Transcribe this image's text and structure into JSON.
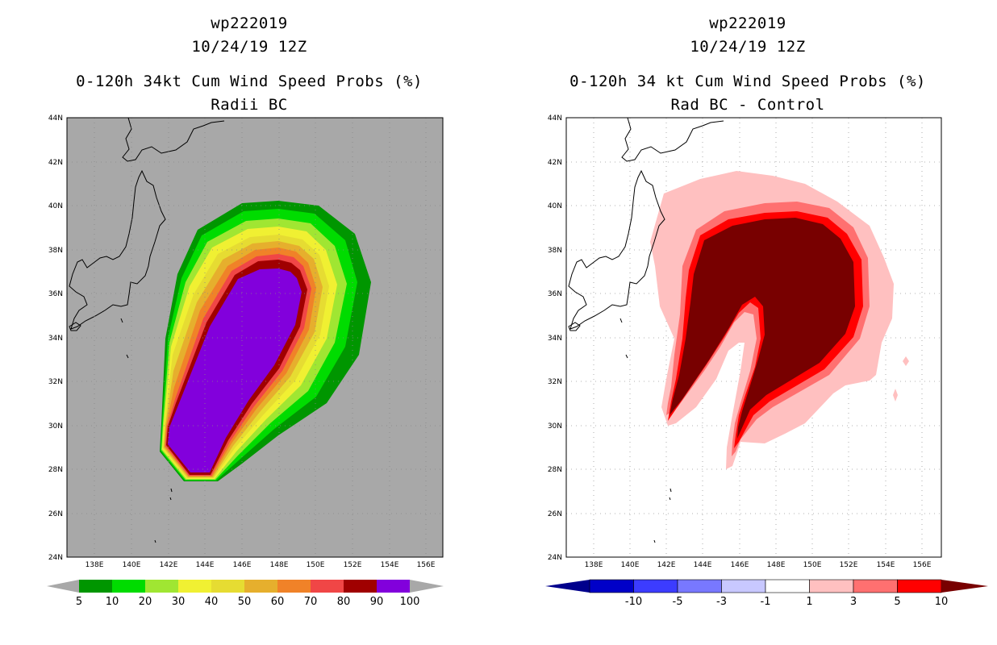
{
  "left_panel": {
    "storm_id": "wp222019",
    "datetime": "10/24/19 12Z",
    "product_title": "0-120h 34kt Cum Wind Speed Probs (%)",
    "subtitle": "Radii BC",
    "background_color": "#a8a8a8",
    "colorbar": {
      "labels": [
        "5",
        "10",
        "20",
        "30",
        "40",
        "50",
        "60",
        "70",
        "80",
        "90",
        "100"
      ],
      "colors": [
        "#009600",
        "#00dc00",
        "#a0e632",
        "#f0f032",
        "#e6dc32",
        "#e6af2d",
        "#f08228",
        "#f04646",
        "#a00000",
        "#8200dc"
      ],
      "end_color": "#a8a8a8"
    }
  },
  "right_panel": {
    "storm_id": "wp222019",
    "datetime": "10/24/19 12Z",
    "product_title": "0-120h 34 kt Cum Wind Speed Probs (%)",
    "subtitle": "Rad BC - Control",
    "background_color": "#ffffff",
    "colorbar": {
      "labels": [
        "-10",
        "-5",
        "-3",
        "-1",
        "1",
        "3",
        "5",
        "10"
      ],
      "colors": [
        "#0000c8",
        "#3c3cff",
        "#7878ff",
        "#c8c8ff",
        "#ffffff",
        "#ffc0c0",
        "#ff7070",
        "#ff0000",
        "#780000"
      ],
      "low_end_color": "#00008c",
      "high_end_color": "#780000"
    }
  },
  "axes": {
    "lat_ticks": [
      "44N",
      "42N",
      "40N",
      "38N",
      "36N",
      "34N",
      "32N",
      "30N",
      "28N",
      "26N",
      "24N"
    ],
    "lon_ticks": [
      "138E",
      "140E",
      "142E",
      "144E",
      "146E",
      "148E",
      "150E",
      "152E",
      "154E",
      "156E"
    ],
    "lon_range": [
      136.5,
      156.9
    ],
    "lat_range": [
      24,
      44
    ]
  }
}
